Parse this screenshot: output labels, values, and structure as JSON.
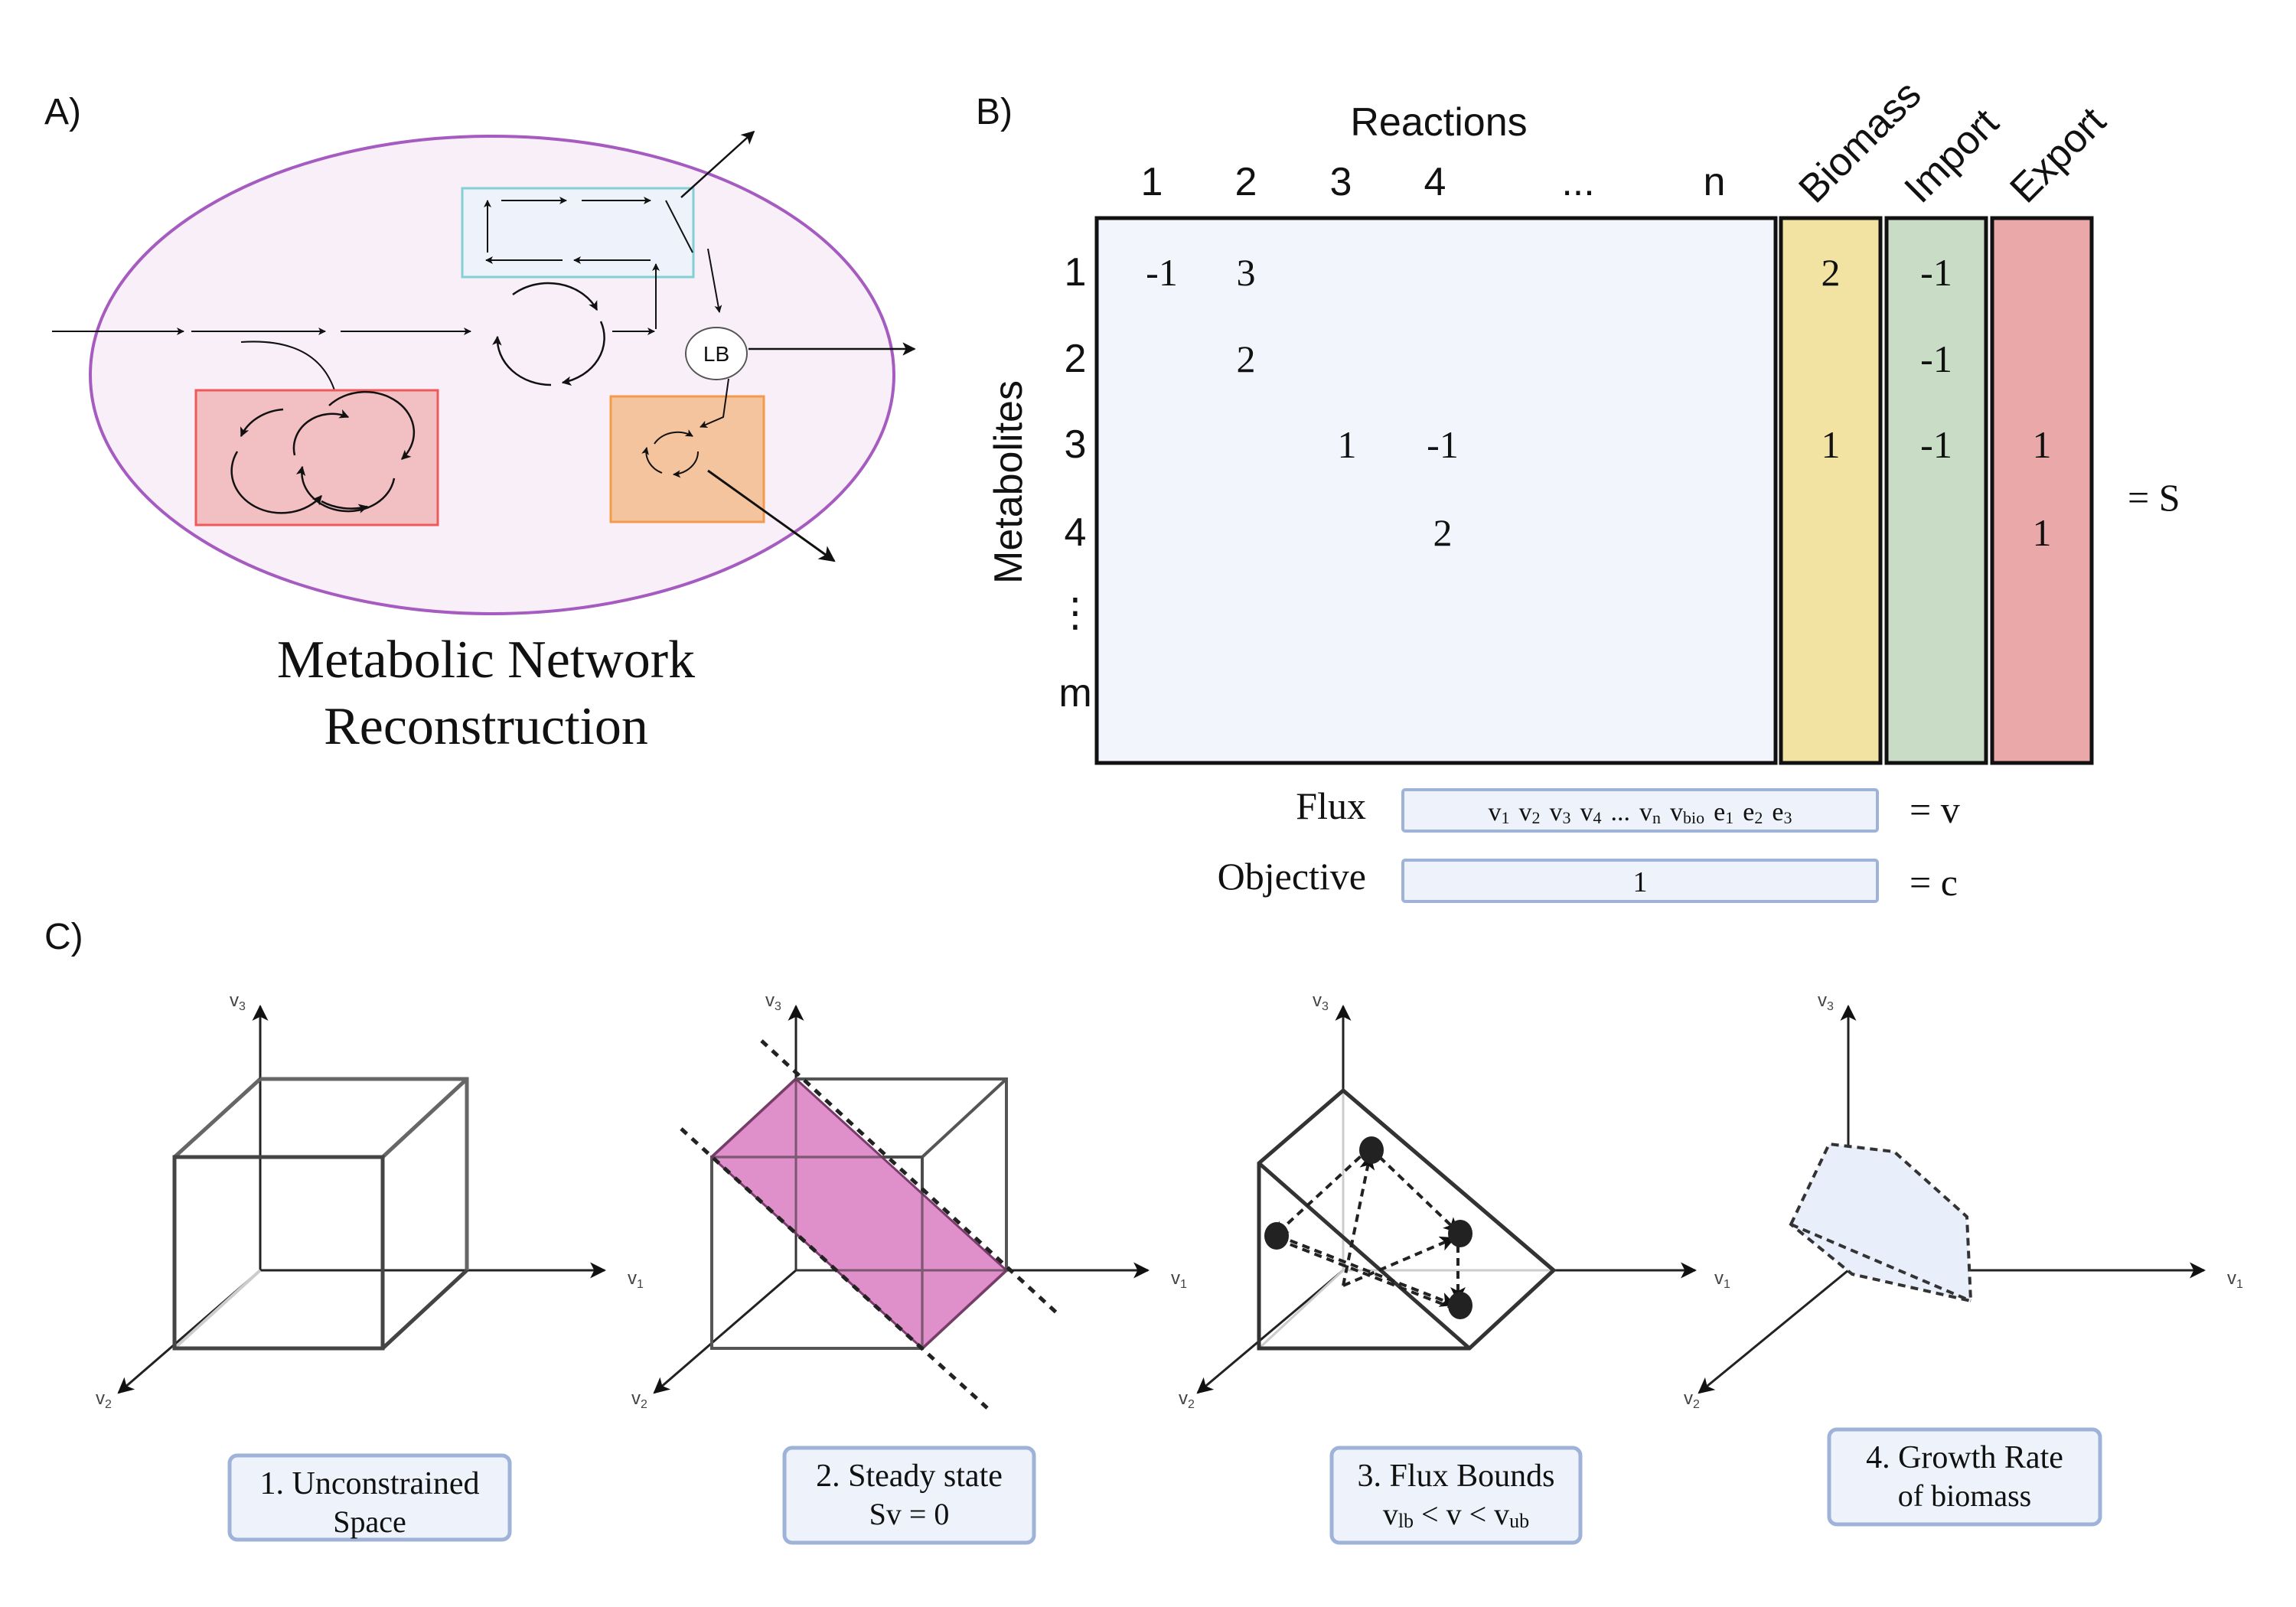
{
  "panel_a": {
    "label": "A)",
    "lb_label": "LB",
    "caption_line1": "Metabolic Network",
    "caption_line2": "Reconstruction"
  },
  "panel_b": {
    "label": "B)",
    "reactions_header": "Reactions",
    "metabolites_header": "Metabolites",
    "col_labels": [
      "1",
      "2",
      "3",
      "4",
      "...",
      "n"
    ],
    "row_labels": [
      "1",
      "2",
      "3",
      "4",
      "⋮",
      "m"
    ],
    "special_col_labels": [
      "Biomass",
      "Import",
      "Export"
    ],
    "cells": [
      {
        "row": 0,
        "col": 0,
        "text": "-1"
      },
      {
        "row": 0,
        "col": 1,
        "text": "3"
      },
      {
        "row": 1,
        "col": 1,
        "text": "2"
      },
      {
        "row": 2,
        "col": 2,
        "text": "1"
      },
      {
        "row": 2,
        "col": 3,
        "text": "-1"
      },
      {
        "row": 3,
        "col": 3,
        "text": "2"
      }
    ],
    "biomass_values": [
      "2",
      "",
      "1",
      ""
    ],
    "import_values": [
      "-1",
      "-1",
      "-1",
      ""
    ],
    "export_values": [
      "",
      "",
      "1",
      "1"
    ],
    "equals_s": "= S",
    "flux_label": "Flux",
    "flux_vector": [
      "v",
      "1",
      "v",
      "2",
      "v",
      "3",
      "v",
      "4",
      "...",
      "v",
      "n",
      "v",
      "bio",
      "e",
      "1",
      "e",
      "2",
      "e",
      "3"
    ],
    "equals_v": "= v",
    "objective_label": "Objective",
    "objective_value": "1",
    "equals_c": "= c",
    "colors": {
      "matrix_fill": "#f2f5fb",
      "biomass_fill": "#f3e3a3",
      "import_fill": "#c9dcc5",
      "export_fill": "#eba8a8"
    }
  },
  "panel_c": {
    "label": "C)",
    "axis_v1": "v1",
    "axis_v2": "v2",
    "axis_v3": "v3",
    "axis_labels": [
      {
        "main": "v",
        "sub": "1"
      },
      {
        "main": "v",
        "sub": "2"
      },
      {
        "main": "v",
        "sub": "3"
      }
    ],
    "steps": [
      {
        "line1": "1. Unconstrained",
        "line2": "Space"
      },
      {
        "line1": "2. Steady state",
        "line2": "Sv = 0"
      },
      {
        "line1": "3. Flux Bounds",
        "line2_parts": [
          "v",
          "lb",
          " < v < ",
          "v",
          "ub"
        ]
      },
      {
        "line1": "4. Growth Rate",
        "line2": "of biomass"
      }
    ],
    "colors": {
      "steady_state_plane": "#d97bbf",
      "growth_polygon": "#e8eefa",
      "caption_box_fill": "#edf2fb",
      "caption_box_stroke": "#9fb3d9"
    }
  }
}
